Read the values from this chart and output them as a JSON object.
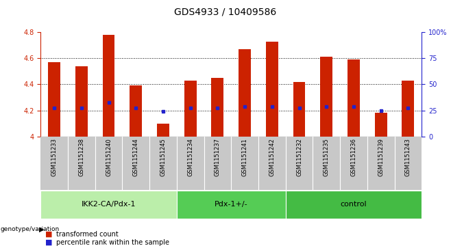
{
  "title": "GDS4933 / 10409586",
  "samples": [
    "GSM1151233",
    "GSM1151238",
    "GSM1151240",
    "GSM1151244",
    "GSM1151245",
    "GSM1151234",
    "GSM1151237",
    "GSM1151241",
    "GSM1151242",
    "GSM1151232",
    "GSM1151235",
    "GSM1151236",
    "GSM1151239",
    "GSM1151243"
  ],
  "transformed_count": [
    4.57,
    4.54,
    4.78,
    4.39,
    4.1,
    4.43,
    4.45,
    4.67,
    4.73,
    4.42,
    4.61,
    4.59,
    4.18,
    4.43
  ],
  "percentile_rank": [
    4.22,
    4.22,
    4.26,
    4.22,
    4.19,
    4.22,
    4.22,
    4.23,
    4.23,
    4.22,
    4.23,
    4.23,
    4.2,
    4.22
  ],
  "groups": [
    {
      "label": "IKK2-CA/Pdx-1",
      "start": 0,
      "end": 5,
      "color": "#bbeeaa"
    },
    {
      "label": "Pdx-1+/-",
      "start": 5,
      "end": 9,
      "color": "#55cc55"
    },
    {
      "label": "control",
      "start": 9,
      "end": 14,
      "color": "#44bb44"
    }
  ],
  "ymin": 4.0,
  "ymax": 4.8,
  "bar_color": "#cc2200",
  "dot_color": "#2222cc",
  "title_fontsize": 10,
  "sample_fontsize": 6,
  "group_label_fontsize": 8,
  "tick_fontsize": 7,
  "right_axis_color": "#2222cc",
  "right_axis_ticks": [
    0,
    25,
    50,
    75,
    100
  ],
  "right_axis_labels": [
    "0",
    "25",
    "50",
    "75",
    "100%"
  ],
  "left_axis_color": "#cc2200",
  "left_axis_ticks": [
    4.0,
    4.2,
    4.4,
    4.6,
    4.8
  ],
  "left_axis_labels": [
    "4",
    "4.2",
    "4.4",
    "4.6",
    "4.8"
  ],
  "xtick_bg_color": "#c8c8c8",
  "genotype_label": "genotype/variation"
}
